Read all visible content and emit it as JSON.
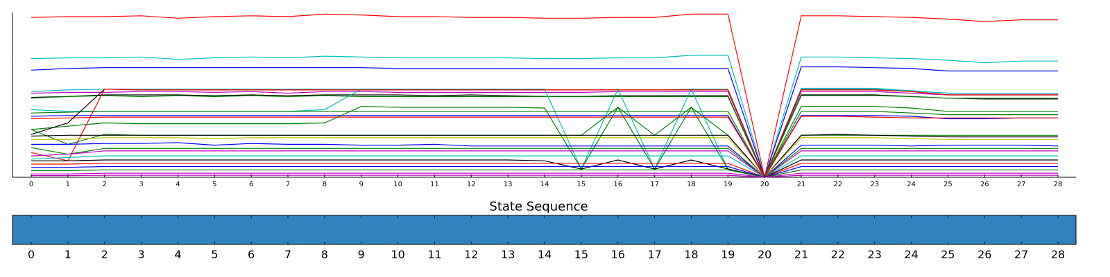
{
  "chart_data": [
    {
      "type": "line",
      "title": "",
      "xlabel": "",
      "ylabel": "",
      "x": [
        0,
        1,
        2,
        3,
        4,
        5,
        6,
        7,
        8,
        9,
        10,
        11,
        12,
        13,
        14,
        15,
        16,
        17,
        18,
        19,
        20,
        21,
        22,
        23,
        24,
        25,
        26,
        27,
        28
      ],
      "xlim": [
        0,
        28
      ],
      "ylim": [
        0,
        100
      ],
      "show_y_ticks": false,
      "grid": false,
      "legend": "none",
      "series": [
        {
          "color": "#ff0000",
          "values": [
            97,
            97.5,
            97.5,
            98,
            96.5,
            97.5,
            98,
            97.5,
            99,
            98.5,
            97.5,
            97.5,
            97,
            97,
            96.5,
            96.5,
            97,
            97,
            99,
            99,
            0,
            98,
            98,
            97.5,
            97,
            96,
            94.5,
            95.5,
            95.5
          ]
        },
        {
          "color": "#00bfbf",
          "values": [
            72,
            72.5,
            72.5,
            73,
            71.5,
            72.5,
            73,
            72.5,
            73.5,
            73,
            72.5,
            72.5,
            72.5,
            72.5,
            72,
            72,
            72.5,
            72.5,
            74,
            74,
            0,
            73,
            73,
            72.5,
            72,
            71,
            69.5,
            70.5,
            70.5
          ]
        },
        {
          "color": "#0000ff",
          "values": [
            65,
            66,
            66.5,
            66.5,
            66.5,
            66.5,
            66.5,
            66.5,
            66.5,
            66.5,
            66,
            66,
            66,
            66,
            66,
            66,
            66,
            66,
            66,
            66,
            0,
            67,
            67,
            66.5,
            66,
            64.5,
            64.5,
            64.5,
            64.5
          ]
        },
        {
          "color": "#00bfbf",
          "values": [
            52,
            53,
            53.5,
            53.5,
            53.5,
            53.5,
            53.5,
            53.5,
            53.5,
            53.5,
            53.5,
            53.5,
            53.5,
            53.5,
            53,
            53,
            53,
            53,
            53.5,
            53.5,
            0,
            53.5,
            53.5,
            53.5,
            52.5,
            51,
            51,
            51,
            51
          ]
        },
        {
          "color": "#bf00bf",
          "values": [
            51,
            51.5,
            51.5,
            52,
            52,
            51.5,
            52,
            51,
            52,
            52,
            51.5,
            51.5,
            51.5,
            51.5,
            51.5,
            51.5,
            52,
            52,
            52,
            52,
            0,
            52,
            52,
            52,
            51,
            50,
            50,
            50,
            50
          ]
        },
        {
          "color": "#000000",
          "values": [
            48.5,
            49,
            50,
            50,
            50,
            49.5,
            50,
            49.5,
            50,
            50,
            50,
            49.5,
            50,
            49.5,
            49,
            49,
            49.5,
            49.5,
            49.5,
            49.5,
            0,
            50,
            50,
            50,
            49,
            48,
            47.5,
            47.5,
            47.5
          ]
        },
        {
          "color": "#008000",
          "values": [
            48,
            49,
            49.5,
            49,
            49.5,
            49,
            49.5,
            49,
            49.5,
            49,
            49,
            49,
            49,
            49,
            49,
            49,
            49,
            49,
            49,
            49,
            0,
            49.5,
            49.5,
            49.5,
            49,
            48,
            48,
            48,
            48
          ]
        },
        {
          "color": "#00bfbf",
          "values": [
            41,
            40,
            40,
            40,
            40,
            40,
            40,
            40,
            41,
            53.5,
            53.5,
            53.5,
            53.5,
            53.5,
            53.5,
            5,
            53.5,
            5,
            53.5,
            5,
            0,
            54,
            54,
            54,
            52.5,
            51,
            51,
            51,
            51
          ]
        },
        {
          "color": "#008000",
          "values": [
            39,
            39.5,
            40,
            40,
            40,
            40,
            40,
            40,
            40,
            40,
            40,
            40,
            40,
            40,
            40,
            40,
            40,
            40,
            40,
            40,
            0,
            40,
            40,
            40,
            39,
            38,
            38,
            38,
            38
          ]
        },
        {
          "color": "#0000ff",
          "values": [
            37,
            37.5,
            37.5,
            37.5,
            37.5,
            37.5,
            37.5,
            37.5,
            37.5,
            37.5,
            37.5,
            37.5,
            37.5,
            37.5,
            37.5,
            37.5,
            37.5,
            37.5,
            37.5,
            37.5,
            0,
            37.5,
            37.5,
            37.5,
            37,
            35.5,
            35.5,
            36,
            36
          ]
        },
        {
          "color": "#ff0000",
          "values": [
            35.5,
            36,
            36.5,
            36.5,
            36.5,
            36.5,
            36.5,
            36.5,
            36.5,
            36.5,
            36.5,
            36.5,
            36.5,
            36.5,
            36.5,
            36.5,
            36.5,
            36.5,
            36.5,
            36.5,
            0,
            37,
            37,
            36.5,
            36,
            36,
            36,
            36,
            36
          ]
        },
        {
          "color": "#008000",
          "values": [
            29,
            31,
            33,
            32.5,
            32.5,
            32.5,
            32.5,
            32.5,
            33,
            43,
            42.5,
            42.5,
            42.5,
            42.5,
            42,
            5,
            42.5,
            5,
            42.5,
            5,
            0,
            43,
            43,
            43,
            42,
            40,
            40,
            40,
            40
          ]
        },
        {
          "color": "#000000",
          "values": [
            26,
            33,
            53.5,
            53,
            53,
            53,
            53,
            53,
            53,
            53,
            53,
            53,
            53,
            53,
            53,
            53,
            53,
            53,
            53,
            53,
            0,
            53,
            53,
            53,
            52,
            50,
            50,
            50,
            50
          ]
        },
        {
          "color": "#ff0000",
          "values": [
            15,
            10,
            53.5,
            53,
            53,
            53,
            53,
            53,
            53,
            53,
            53,
            53,
            53,
            53,
            53,
            53,
            53,
            53,
            53,
            53,
            0,
            53,
            53,
            53,
            52,
            50,
            50,
            50,
            50
          ]
        },
        {
          "color": "#008000",
          "values": [
            29,
            20,
            26,
            25.5,
            25.5,
            25.5,
            25.5,
            25.5,
            25.5,
            25.5,
            25.5,
            25.5,
            25.5,
            25.5,
            25.5,
            25.5,
            42.5,
            25.5,
            42.5,
            25.5,
            0,
            25.5,
            25.5,
            25.5,
            25.5,
            25.5,
            25.5,
            25.5,
            25.5
          ]
        },
        {
          "color": "#000000",
          "values": [
            25,
            25.5,
            25.5,
            25.5,
            25.5,
            25.5,
            25.5,
            25.5,
            25.5,
            25.5,
            25.5,
            25.5,
            25.5,
            25.5,
            25.5,
            25.5,
            25.5,
            25.5,
            25.5,
            25.5,
            0,
            25.5,
            26,
            25.5,
            25,
            24.5,
            24.5,
            24.5,
            24.5
          ]
        },
        {
          "color": "#bfbf00",
          "values": [
            23,
            23,
            24,
            24,
            24,
            23.5,
            24,
            24,
            24,
            24,
            24,
            24,
            24,
            24,
            24,
            24,
            24,
            24,
            24,
            24,
            0,
            24,
            24,
            24,
            23.5,
            23,
            23,
            23,
            23
          ]
        },
        {
          "color": "#0000ff",
          "values": [
            20,
            20,
            20.5,
            20.5,
            21,
            19.5,
            20.5,
            20,
            20,
            19.5,
            19.5,
            20,
            19,
            19,
            19,
            19,
            19,
            19,
            19,
            19,
            0,
            19.5,
            19.5,
            19.5,
            19,
            19.5,
            19.5,
            19.5,
            19
          ]
        },
        {
          "color": "#008000",
          "values": [
            18,
            14,
            17.5,
            17.5,
            17.5,
            17.5,
            17.5,
            17.5,
            17.5,
            17.5,
            17.5,
            17.5,
            17.5,
            17.5,
            17.5,
            17.5,
            17.5,
            17.5,
            17.5,
            17.5,
            0,
            17.5,
            17.5,
            17.5,
            17.5,
            17.5,
            17.5,
            17.5,
            17.5
          ]
        },
        {
          "color": "#bf00bf",
          "values": [
            13,
            14,
            16,
            16,
            16,
            16,
            16,
            16,
            16,
            16,
            16,
            16,
            16,
            16,
            16,
            16,
            16,
            16,
            16,
            16,
            0,
            16,
            16,
            16,
            16,
            16,
            16,
            16,
            16
          ]
        },
        {
          "color": "#00bfbf",
          "values": [
            11,
            12,
            13,
            13,
            13,
            13,
            13,
            13,
            13,
            13,
            13,
            13,
            13,
            13,
            13,
            13,
            13,
            13,
            13,
            13,
            0,
            13,
            13,
            13,
            13,
            13,
            13,
            13,
            13
          ]
        },
        {
          "color": "#000000",
          "values": [
            10,
            10,
            10.5,
            10.5,
            10.5,
            10.5,
            10.5,
            10.5,
            10.5,
            10.5,
            10.5,
            10.5,
            10.5,
            10.5,
            10,
            5,
            10.5,
            5,
            10.5,
            5,
            0,
            10.5,
            10.5,
            10.5,
            10.5,
            10.5,
            10.5,
            10.5,
            10.5
          ]
        },
        {
          "color": "#ff0000",
          "values": [
            8,
            8,
            8.5,
            8.5,
            8.5,
            8.5,
            8.5,
            8.5,
            8.5,
            8.5,
            8.5,
            8.5,
            8.5,
            8.5,
            8.5,
            8.5,
            8.5,
            8.5,
            8.5,
            8.5,
            0,
            8.5,
            8.5,
            8.5,
            8.5,
            8.5,
            8.5,
            8.5,
            8.5
          ]
        },
        {
          "color": "#0000ff",
          "values": [
            6,
            6,
            6.5,
            6.5,
            6.5,
            6.5,
            6.5,
            6.5,
            6.5,
            6.5,
            6.5,
            6.5,
            6.5,
            6.5,
            6.5,
            6.5,
            6.5,
            6.5,
            6.5,
            6.5,
            0,
            6.5,
            6.5,
            6.5,
            6.5,
            6.5,
            6.5,
            6.5,
            6.5
          ]
        },
        {
          "color": "#008000",
          "values": [
            4,
            4,
            4.5,
            4.5,
            4.5,
            4.5,
            4.5,
            4.5,
            4.5,
            4.5,
            4.5,
            4.5,
            4.5,
            4.5,
            4.5,
            4.5,
            4.5,
            4.5,
            4.5,
            4.5,
            0,
            4.5,
            4.5,
            4.5,
            4.5,
            4.5,
            4.5,
            4.5,
            4.5
          ]
        },
        {
          "color": "#bf00bf",
          "values": [
            2,
            2,
            2.5,
            2.5,
            2.5,
            2.5,
            2.5,
            2.5,
            2.5,
            2.5,
            2.5,
            2.5,
            2.5,
            2.5,
            2.5,
            2.5,
            2.5,
            2.5,
            2.5,
            2.5,
            0,
            2.5,
            2.5,
            2.5,
            2.5,
            2.5,
            2.5,
            2.5,
            2.5
          ]
        },
        {
          "color": "#bf00bf",
          "values": [
            1,
            1,
            1.2,
            1.2,
            1.2,
            1.2,
            1.2,
            1.2,
            1.2,
            1.2,
            1.2,
            1.2,
            1.2,
            1.2,
            1.2,
            1.2,
            1.2,
            1.2,
            1.2,
            1.2,
            0,
            1.2,
            1.2,
            1.2,
            1.2,
            1.2,
            1.2,
            1.2,
            1.2
          ]
        }
      ]
    },
    {
      "type": "heatmap",
      "title": "State Sequence",
      "x": [
        0,
        1,
        2,
        3,
        4,
        5,
        6,
        7,
        8,
        9,
        10,
        11,
        12,
        13,
        14,
        15,
        16,
        17,
        18,
        19,
        20,
        21,
        22,
        23,
        24,
        25,
        26,
        27,
        28
      ],
      "states": [
        0,
        0,
        0,
        0,
        0,
        0,
        0,
        0,
        0,
        0,
        0,
        0,
        0,
        0,
        0,
        0,
        0,
        0,
        0,
        0,
        0,
        0,
        0,
        0,
        0,
        0,
        0,
        0,
        0
      ],
      "state_colors": [
        "#3182bd"
      ]
    }
  ]
}
